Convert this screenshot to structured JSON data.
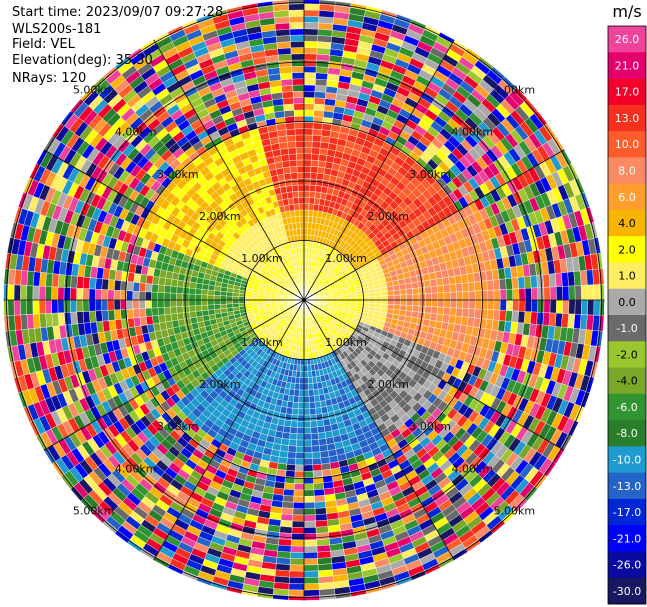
{
  "header": {
    "start_time": "Start time: 2023/09/07 09:27:28",
    "instrument": "WLS200s-181",
    "field": "Field: VEL",
    "elevation": "Elevation(deg): 35.30",
    "nrays": "NRays: 120"
  },
  "colorbar": {
    "unit": "m/s",
    "ticks": [
      "26.0",
      "21.0",
      "17.0",
      "13.0",
      "10.0",
      "8.0",
      "6.0",
      "4.0",
      "2.0",
      "1.0",
      "0.0",
      "-1.0",
      "-2.0",
      "-4.0",
      "-6.0",
      "-8.0",
      "-10.0",
      "-13.0",
      "-17.0",
      "-21.0",
      "-26.0",
      "-30.0"
    ],
    "colors": [
      "#f0439c",
      "#e4006c",
      "#f2002a",
      "#f5301c",
      "#ff5c2c",
      "#f98a62",
      "#ff9e2e",
      "#f9b400",
      "#ffff00",
      "#ffee61",
      "#aaaaaa",
      "#6a6a6a",
      "#9ac62e",
      "#79a728",
      "#309430",
      "#2a7d2a",
      "#1f9bd0",
      "#2464c8",
      "#0026d8",
      "#0000ff",
      "#0a0aa0",
      "#171762"
    ]
  },
  "chart_data": {
    "type": "heatmap",
    "subtype": "radar-ppi",
    "field": "VEL",
    "unit": "m/s",
    "nrays": 120,
    "elevation_deg": 35.3,
    "range_rings_km": [
      1,
      2,
      3,
      4,
      5
    ],
    "ring_labels": [
      "1.00km",
      "2.00km",
      "3.00km",
      "4.00km",
      "5.00km"
    ],
    "spokes_deg": [
      0,
      30,
      60,
      90,
      120,
      150
    ],
    "valid_range_km_by_sector": [
      {
        "azimuth_deg": [
          0,
          60
        ],
        "max_km": 2.9,
        "velocity_m_s": "4 to 10"
      },
      {
        "azimuth_deg": [
          60,
          110
        ],
        "max_km": 3.2,
        "velocity_m_s": "1 to 8"
      },
      {
        "azimuth_deg": [
          110,
          150
        ],
        "max_km": 2.6,
        "velocity_m_s": "-2 to 0"
      },
      {
        "azimuth_deg": [
          150,
          230
        ],
        "max_km": 2.7,
        "velocity_m_s": "-13 to -4"
      },
      {
        "azimuth_deg": [
          230,
          290
        ],
        "max_km": 2.5,
        "velocity_m_s": "-4 to -1"
      },
      {
        "azimuth_deg": [
          290,
          360
        ],
        "max_km": 2.9,
        "velocity_m_s": "2 to 8"
      }
    ],
    "near_core_km": 0.9,
    "near_core_velocity_m_s": "0 to 2",
    "beyond_valid_range": "noise (random colors)"
  }
}
